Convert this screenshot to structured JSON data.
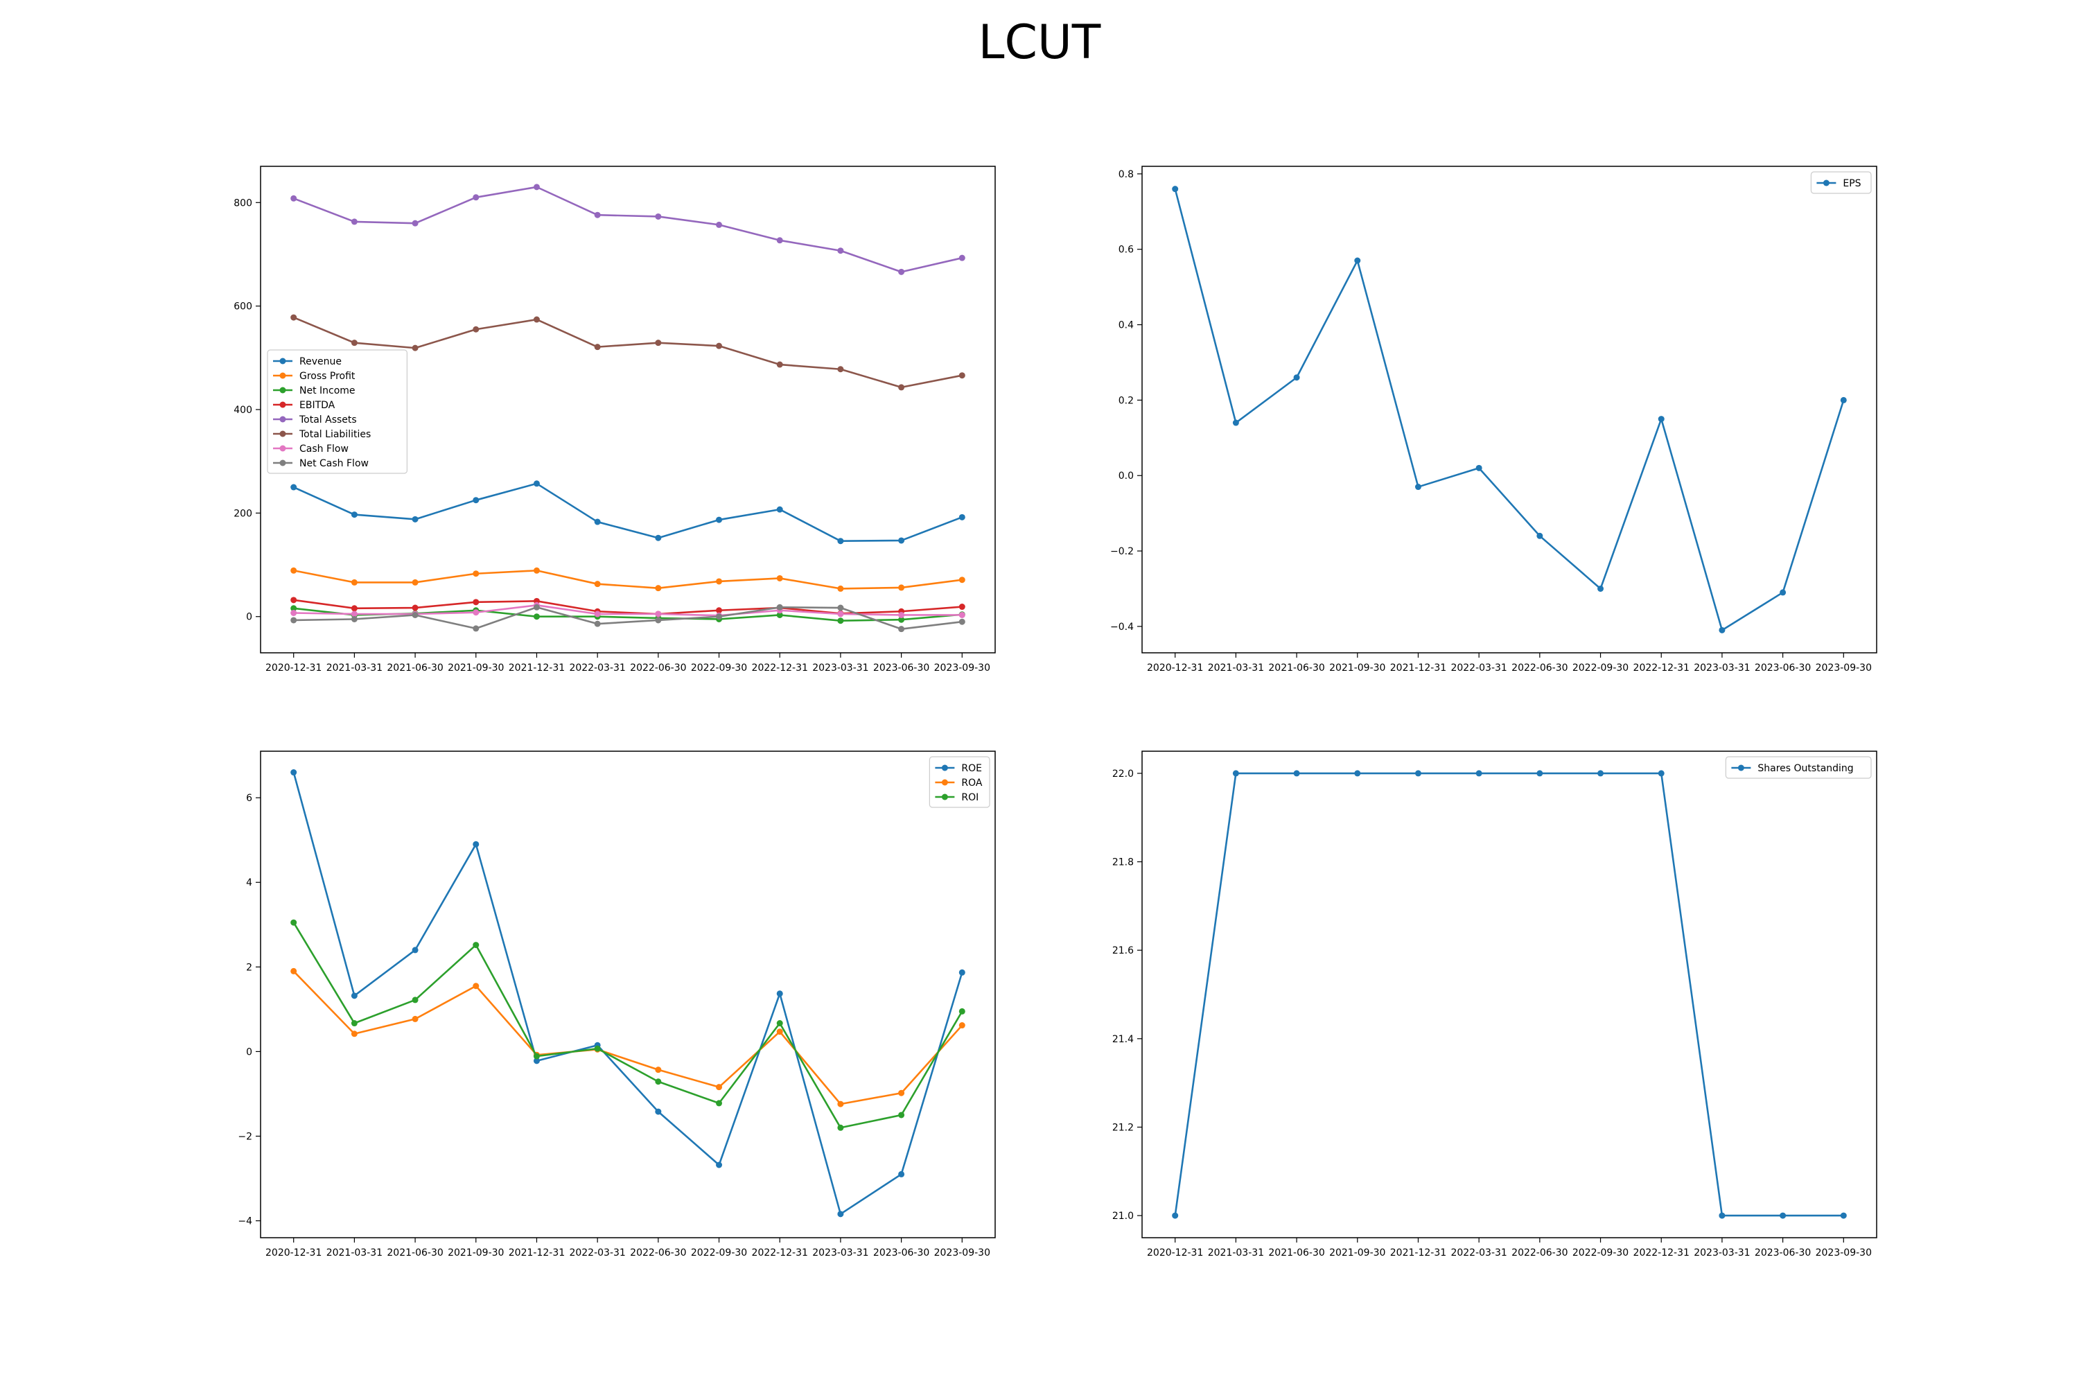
{
  "title": "LCUT",
  "chart_data": [
    {
      "type": "line",
      "x": [
        "2020-12-31",
        "2021-03-31",
        "2021-06-30",
        "2021-09-30",
        "2021-12-31",
        "2022-03-31",
        "2022-06-30",
        "2022-09-30",
        "2022-12-31",
        "2023-03-31",
        "2023-06-30",
        "2023-09-30"
      ],
      "ylim": [
        -70,
        870
      ],
      "yticks": [
        0,
        200,
        400,
        600,
        800
      ],
      "legend_position": "center-left",
      "series": [
        {
          "name": "Revenue",
          "color": "#1f77b4",
          "values": [
            250,
            197,
            188,
            225,
            257,
            183,
            152,
            187,
            207,
            146,
            147,
            192
          ]
        },
        {
          "name": "Gross Profit",
          "color": "#ff7f0e",
          "values": [
            89,
            66,
            66,
            83,
            89,
            63,
            55,
            68,
            74,
            54,
            56,
            71
          ]
        },
        {
          "name": "Net Income",
          "color": "#2ca02c",
          "values": [
            16,
            3,
            6,
            12,
            0,
            0,
            -3,
            -5,
            3,
            -8,
            -6,
            4
          ]
        },
        {
          "name": "EBITDA",
          "color": "#d62728",
          "values": [
            32,
            16,
            17,
            28,
            30,
            10,
            5,
            12,
            17,
            6,
            10,
            19
          ]
        },
        {
          "name": "Total Assets",
          "color": "#9467bd",
          "values": [
            808,
            763,
            760,
            810,
            830,
            776,
            773,
            757,
            727,
            707,
            666,
            693
          ]
        },
        {
          "name": "Total Liabilities",
          "color": "#8c564b",
          "values": [
            578,
            529,
            519,
            555,
            574,
            521,
            529,
            523,
            487,
            478,
            443,
            466
          ]
        },
        {
          "name": "Cash Flow",
          "color": "#e377c2",
          "values": [
            7,
            5,
            5,
            8,
            22,
            5,
            5,
            2,
            12,
            5,
            3,
            3
          ]
        },
        {
          "name": "Net Cash Flow",
          "color": "#7f7f7f",
          "values": [
            -7,
            -5,
            3,
            -23,
            18,
            -14,
            -7,
            0,
            18,
            17,
            -24,
            -10
          ]
        }
      ]
    },
    {
      "type": "line",
      "x": [
        "2020-12-31",
        "2021-03-31",
        "2021-06-30",
        "2021-09-30",
        "2021-12-31",
        "2022-03-31",
        "2022-06-30",
        "2022-09-30",
        "2022-12-31",
        "2023-03-31",
        "2023-06-30",
        "2023-09-30"
      ],
      "ylim": [
        -0.47,
        0.82
      ],
      "yticks": [
        -0.4,
        -0.2,
        0.0,
        0.2,
        0.4,
        0.6,
        0.8
      ],
      "legend_position": "top-right",
      "series": [
        {
          "name": "EPS",
          "color": "#1f77b4",
          "values": [
            0.76,
            0.14,
            0.26,
            0.57,
            -0.03,
            0.02,
            -0.16,
            -0.3,
            0.15,
            -0.41,
            -0.31,
            0.2
          ]
        }
      ]
    },
    {
      "type": "line",
      "x": [
        "2020-12-31",
        "2021-03-31",
        "2021-06-30",
        "2021-09-30",
        "2021-12-31",
        "2022-03-31",
        "2022-06-30",
        "2022-09-30",
        "2022-12-31",
        "2023-03-31",
        "2023-06-30",
        "2023-09-30"
      ],
      "ylim": [
        -4.4,
        7.1
      ],
      "yticks": [
        -4,
        -2,
        0,
        2,
        4,
        6
      ],
      "legend_position": "top-right",
      "series": [
        {
          "name": "ROE",
          "color": "#1f77b4",
          "values": [
            6.6,
            1.32,
            2.4,
            4.9,
            -0.22,
            0.15,
            -1.42,
            -2.68,
            1.37,
            -3.84,
            -2.9,
            1.87
          ]
        },
        {
          "name": "ROA",
          "color": "#ff7f0e",
          "values": [
            1.9,
            0.42,
            0.77,
            1.55,
            -0.08,
            0.05,
            -0.43,
            -0.84,
            0.47,
            -1.24,
            -0.98,
            0.62
          ]
        },
        {
          "name": "ROI",
          "color": "#2ca02c",
          "values": [
            3.05,
            0.67,
            1.22,
            2.52,
            -0.11,
            0.07,
            -0.71,
            -1.22,
            0.67,
            -1.8,
            -1.5,
            0.95
          ]
        }
      ]
    },
    {
      "type": "line",
      "x": [
        "2020-12-31",
        "2021-03-31",
        "2021-06-30",
        "2021-09-30",
        "2021-12-31",
        "2022-03-31",
        "2022-06-30",
        "2022-09-30",
        "2022-12-31",
        "2023-03-31",
        "2023-06-30",
        "2023-09-30"
      ],
      "ylim": [
        20.95,
        22.05
      ],
      "yticks": [
        21.0,
        21.2,
        21.4,
        21.6,
        21.8,
        22.0
      ],
      "legend_position": "top-right",
      "series": [
        {
          "name": "Shares Outstanding",
          "color": "#1f77b4",
          "values": [
            21.0,
            22.0,
            22.0,
            22.0,
            22.0,
            22.0,
            22.0,
            22.0,
            22.0,
            21.0,
            21.0,
            21.0
          ]
        }
      ]
    }
  ]
}
